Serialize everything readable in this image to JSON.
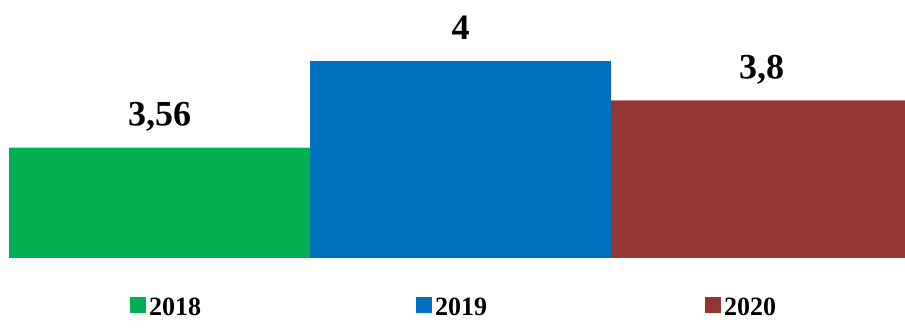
{
  "chart_data": {
    "type": "bar",
    "categories": [
      "2018",
      "2019",
      "2020"
    ],
    "series": [
      {
        "name": "2018",
        "value": 3.56,
        "label": "3,56",
        "color": "#00B050"
      },
      {
        "name": "2019",
        "value": 4,
        "label": "4",
        "color": "#0070C0"
      },
      {
        "name": "2020",
        "value": 3.8,
        "label": "3,8",
        "color": "#943634"
      }
    ],
    "ylim": [
      3,
      4
    ],
    "grid": false,
    "legend": "bottom"
  }
}
